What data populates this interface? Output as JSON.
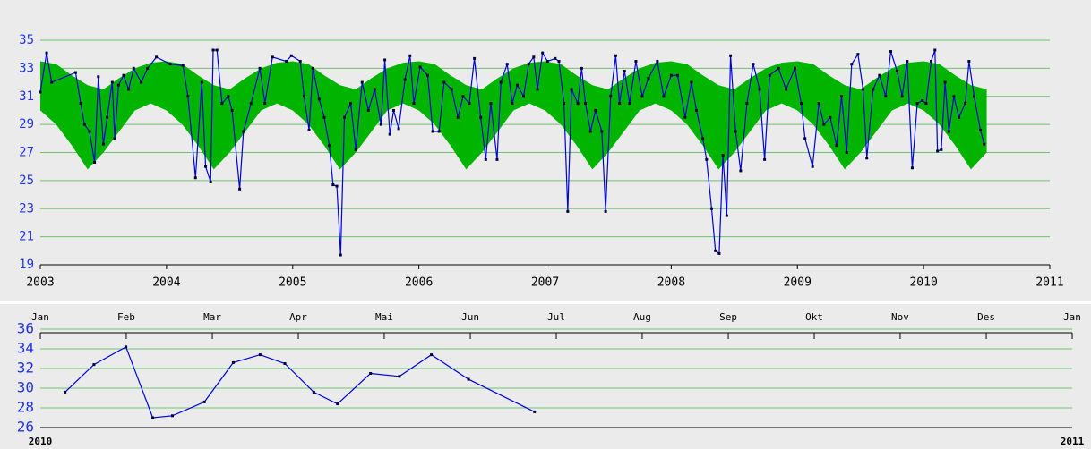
{
  "chart_data": [
    {
      "type": "line",
      "xlim": [
        2003,
        2011
      ],
      "xticks": [
        2003,
        2004,
        2005,
        2006,
        2007,
        2008,
        2009,
        2010,
        2011
      ],
      "ylim": [
        19,
        35
      ],
      "yticks": [
        19,
        21,
        23,
        25,
        27,
        29,
        31,
        33,
        35
      ],
      "grid": true,
      "grid_color": "#6cc46c",
      "band": {
        "color": "#00b400",
        "x": [
          2003,
          2003.125,
          2003.25,
          2003.375,
          2003.5,
          2003.625,
          2003.75,
          2003.875,
          2004,
          2004.125,
          2004.25,
          2004.375,
          2004.5,
          2004.625,
          2004.75,
          2004.875,
          2005,
          2005.125,
          2005.25,
          2005.375,
          2005.5,
          2005.625,
          2005.75,
          2005.875,
          2006,
          2006.125,
          2006.25,
          2006.375,
          2006.5,
          2006.625,
          2006.75,
          2006.875,
          2007,
          2007.125,
          2007.25,
          2007.375,
          2007.5,
          2007.625,
          2007.75,
          2007.875,
          2008,
          2008.125,
          2008.25,
          2008.375,
          2008.5,
          2008.625,
          2008.75,
          2008.875,
          2009,
          2009.125,
          2009.25,
          2009.375,
          2009.5,
          2009.625,
          2009.75,
          2009.875,
          2010,
          2010.125,
          2010.25,
          2010.375,
          2010.5
        ],
        "lower": [
          30.0,
          29.0,
          27.5,
          25.8,
          27.0,
          28.5,
          30.0,
          30.5,
          30.0,
          29.0,
          27.5,
          25.8,
          27.0,
          28.5,
          30.0,
          30.5,
          30.0,
          29.0,
          27.5,
          25.8,
          27.0,
          28.5,
          30.0,
          30.5,
          30.0,
          29.0,
          27.5,
          25.8,
          27.0,
          28.5,
          30.0,
          30.5,
          30.0,
          29.0,
          27.5,
          25.8,
          27.0,
          28.5,
          30.0,
          30.5,
          30.0,
          29.0,
          27.5,
          25.8,
          27.0,
          28.5,
          30.0,
          30.5,
          30.0,
          29.0,
          27.5,
          25.8,
          27.0,
          28.5,
          30.0,
          30.5,
          30.0,
          29.0,
          27.5,
          25.8,
          27.0
        ],
        "upper": [
          33.5,
          33.3,
          32.5,
          31.8,
          31.5,
          32.3,
          33.0,
          33.4,
          33.5,
          33.3,
          32.5,
          31.8,
          31.5,
          32.3,
          33.0,
          33.4,
          33.5,
          33.3,
          32.5,
          31.8,
          31.5,
          32.3,
          33.0,
          33.4,
          33.5,
          33.3,
          32.5,
          31.8,
          31.5,
          32.3,
          33.0,
          33.4,
          33.5,
          33.3,
          32.5,
          31.8,
          31.5,
          32.3,
          33.0,
          33.4,
          33.5,
          33.3,
          32.5,
          31.8,
          31.5,
          32.3,
          33.0,
          33.4,
          33.5,
          33.3,
          32.5,
          31.8,
          31.5,
          32.3,
          33.0,
          33.4,
          33.5,
          33.3,
          32.5,
          31.8,
          31.5
        ]
      },
      "series": [
        {
          "color": "#0000dd",
          "x": [
            2003.0,
            2003.05,
            2003.09,
            2003.28,
            2003.32,
            2003.35,
            2003.39,
            2003.43,
            2003.46,
            2003.5,
            2003.53,
            2003.57,
            2003.59,
            2003.62,
            2003.66,
            2003.7,
            2003.74,
            2003.8,
            2003.85,
            2003.92,
            2004.03,
            2004.13,
            2004.17,
            2004.23,
            2004.28,
            2004.31,
            2004.35,
            2004.37,
            2004.4,
            2004.44,
            2004.49,
            2004.52,
            2004.58,
            2004.61,
            2004.67,
            2004.74,
            2004.78,
            2004.84,
            2004.95,
            2004.99,
            2005.06,
            2005.09,
            2005.13,
            2005.16,
            2005.21,
            2005.25,
            2005.29,
            2005.32,
            2005.35,
            2005.38,
            2005.41,
            2005.46,
            2005.5,
            2005.55,
            2005.6,
            2005.65,
            2005.7,
            2005.73,
            2005.77,
            2005.8,
            2005.84,
            2005.89,
            2005.93,
            2005.96,
            2006.01,
            2006.07,
            2006.11,
            2006.16,
            2006.2,
            2006.26,
            2006.31,
            2006.35,
            2006.4,
            2006.44,
            2006.49,
            2006.53,
            2006.57,
            2006.62,
            2006.65,
            2006.7,
            2006.74,
            2006.78,
            2006.83,
            2006.87,
            2006.91,
            2006.94,
            2006.98,
            2007.02,
            2007.08,
            2007.11,
            2007.15,
            2007.18,
            2007.21,
            2007.26,
            2007.29,
            2007.32,
            2007.36,
            2007.4,
            2007.45,
            2007.48,
            2007.52,
            2007.56,
            2007.59,
            2007.63,
            2007.67,
            2007.72,
            2007.77,
            2007.82,
            2007.89,
            2007.94,
            2008.0,
            2008.05,
            2008.11,
            2008.16,
            2008.2,
            2008.25,
            2008.28,
            2008.32,
            2008.35,
            2008.38,
            2008.41,
            2008.44,
            2008.47,
            2008.51,
            2008.55,
            2008.6,
            2008.65,
            2008.7,
            2008.74,
            2008.78,
            2008.85,
            2008.91,
            2008.98,
            2009.03,
            2009.06,
            2009.12,
            2009.17,
            2009.21,
            2009.26,
            2009.31,
            2009.35,
            2009.39,
            2009.43,
            2009.48,
            2009.52,
            2009.55,
            2009.6,
            2009.65,
            2009.7,
            2009.74,
            2009.79,
            2009.83,
            2009.87,
            2009.91,
            2009.95,
            2009.99,
            2010.02,
            2010.06,
            2010.09,
            2010.11,
            2010.14,
            2010.17,
            2010.2,
            2010.24,
            2010.28,
            2010.33,
            2010.36,
            2010.4,
            2010.45,
            2010.48
          ],
          "values": [
            31.3,
            34.1,
            32.0,
            32.7,
            30.5,
            29.0,
            28.5,
            26.3,
            32.4,
            27.6,
            29.5,
            32.0,
            28.0,
            31.8,
            32.5,
            31.5,
            33.0,
            32.0,
            33.0,
            33.8,
            33.3,
            33.2,
            31.0,
            25.2,
            32.0,
            26.0,
            24.9,
            34.3,
            34.3,
            30.5,
            31.0,
            30.0,
            24.4,
            28.5,
            30.5,
            33.0,
            30.5,
            33.8,
            33.5,
            33.9,
            33.5,
            31.0,
            28.6,
            33.0,
            30.8,
            29.5,
            27.5,
            24.7,
            24.6,
            19.7,
            29.5,
            30.5,
            27.2,
            32.0,
            30.0,
            31.5,
            29.0,
            33.6,
            28.3,
            30.0,
            28.7,
            32.2,
            33.9,
            30.5,
            33.1,
            32.5,
            28.5,
            28.5,
            32.0,
            31.5,
            29.5,
            31.0,
            30.5,
            33.7,
            29.5,
            26.5,
            30.5,
            26.5,
            32.0,
            33.3,
            30.5,
            31.8,
            31.0,
            33.3,
            33.8,
            31.5,
            34.1,
            33.5,
            33.7,
            33.5,
            30.5,
            22.8,
            31.5,
            30.5,
            33.0,
            30.5,
            28.5,
            30.0,
            28.5,
            22.8,
            31.0,
            33.9,
            30.5,
            32.8,
            30.5,
            33.5,
            31.0,
            32.3,
            33.5,
            31.0,
            32.5,
            32.5,
            29.5,
            32.0,
            30.0,
            28.0,
            26.5,
            23.0,
            20.0,
            19.8,
            26.8,
            22.5,
            33.9,
            28.5,
            25.7,
            30.5,
            33.3,
            31.5,
            26.5,
            32.5,
            33.0,
            31.5,
            33.0,
            30.5,
            28.0,
            26.0,
            30.5,
            29.0,
            29.5,
            27.5,
            31.0,
            27.0,
            33.3,
            34.0,
            31.5,
            26.6,
            31.5,
            32.5,
            31.0,
            34.2,
            32.8,
            31.0,
            33.5,
            25.9,
            30.5,
            30.7,
            30.5,
            33.5,
            34.3,
            27.1,
            27.2,
            32.0,
            28.5,
            31.0,
            29.5,
            30.5,
            33.5,
            31.0,
            28.6,
            27.6
          ]
        }
      ]
    },
    {
      "type": "line",
      "xlim": [
        2010,
        2011
      ],
      "xticks": [
        {
          "value": 2010,
          "label": "Jan"
        },
        {
          "value": 2010.0833,
          "label": "Feb"
        },
        {
          "value": 2010.1667,
          "label": "Mar"
        },
        {
          "value": 2010.25,
          "label": "Apr"
        },
        {
          "value": 2010.3333,
          "label": "Mai"
        },
        {
          "value": 2010.4167,
          "label": "Jun"
        },
        {
          "value": 2010.5,
          "label": "Jul"
        },
        {
          "value": 2010.5833,
          "label": "Aug"
        },
        {
          "value": 2010.6667,
          "label": "Sep"
        },
        {
          "value": 2010.75,
          "label": "Okt"
        },
        {
          "value": 2010.8333,
          "label": "Nov"
        },
        {
          "value": 2010.9167,
          "label": "Des"
        },
        {
          "value": 2011,
          "label": "Jan"
        }
      ],
      "year_ticks": [
        2010,
        2011
      ],
      "ylim": [
        26,
        36
      ],
      "yticks": [
        26,
        28,
        30,
        32,
        34,
        36
      ],
      "grid": true,
      "grid_color": "#6cc46c",
      "series": [
        {
          "color": "#0000dd",
          "x": [
            2010.024,
            2010.052,
            2010.083,
            2010.109,
            2010.128,
            2010.159,
            2010.187,
            2010.213,
            2010.237,
            2010.265,
            2010.288,
            2010.32,
            2010.348,
            2010.379,
            2010.415,
            2010.479
          ],
          "values": [
            29.6,
            32.4,
            34.2,
            27.0,
            27.2,
            28.6,
            32.6,
            33.4,
            32.5,
            29.6,
            28.4,
            31.5,
            31.2,
            33.4,
            30.9,
            27.6
          ]
        }
      ]
    }
  ]
}
